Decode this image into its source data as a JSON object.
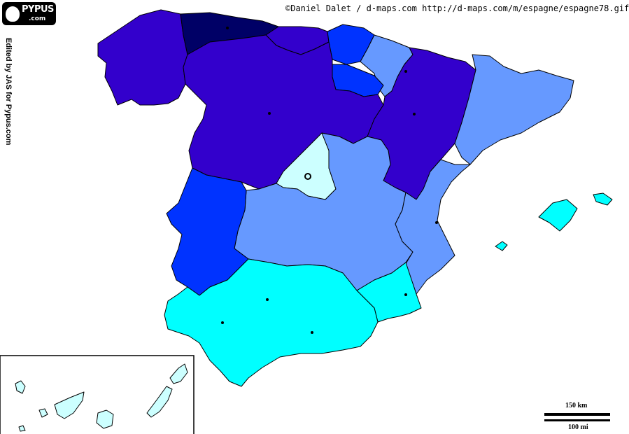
{
  "copyright": "©Daniel Dalet / d-maps.com  http://d-maps.com/m/espagne/espagne78.gif",
  "side_credit": "Edited by JAS for Pypus.com",
  "logo": {
    "name": "PYPUS",
    "sub": ".com"
  },
  "scale": {
    "km_label": "150 km",
    "mi_label": "100 mi"
  },
  "regions": [
    {
      "id": "galicia",
      "color": "#3300cc"
    },
    {
      "id": "asturias",
      "color": "#000066"
    },
    {
      "id": "cantabria",
      "color": "#3300cc"
    },
    {
      "id": "pais-vasco",
      "color": "#0033ff"
    },
    {
      "id": "navarra",
      "color": "#6699ff"
    },
    {
      "id": "la-rioja",
      "color": "#0033ff"
    },
    {
      "id": "castilla-y-leon",
      "color": "#3300cc"
    },
    {
      "id": "aragon",
      "color": "#3300cc"
    },
    {
      "id": "cataluna",
      "color": "#6699ff"
    },
    {
      "id": "madrid",
      "color": "#ccffff"
    },
    {
      "id": "castilla-la-mancha",
      "color": "#6699ff"
    },
    {
      "id": "extremadura",
      "color": "#0033ff"
    },
    {
      "id": "valencia",
      "color": "#6699ff"
    },
    {
      "id": "murcia",
      "color": "#00ffff"
    },
    {
      "id": "andalucia",
      "color": "#00ffff"
    },
    {
      "id": "baleares",
      "color": "#00ffff"
    },
    {
      "id": "canarias",
      "color": "#ccffff"
    }
  ]
}
